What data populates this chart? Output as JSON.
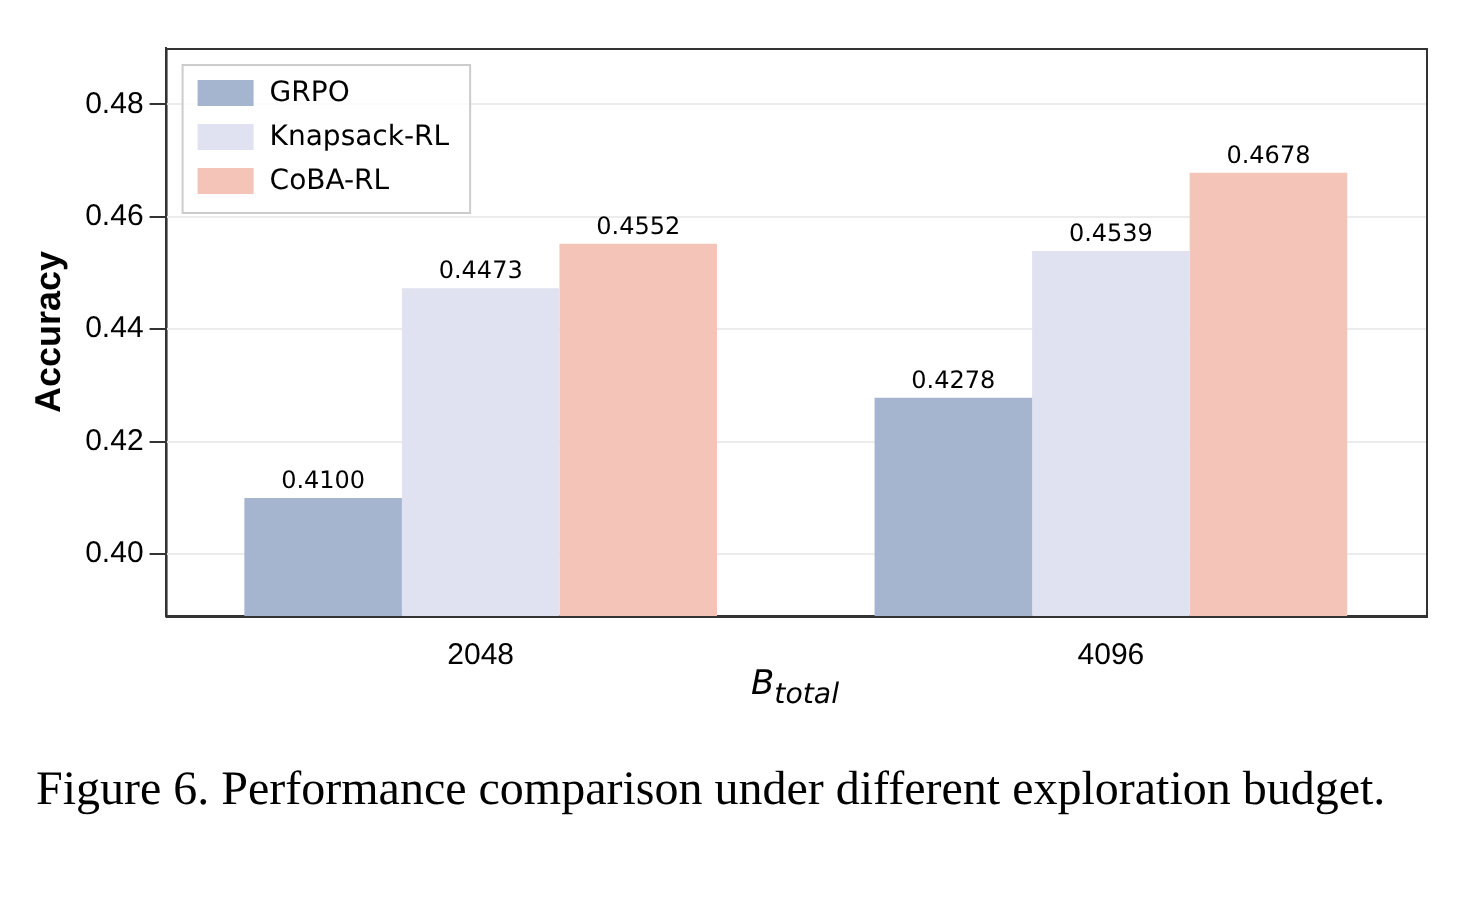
{
  "chart_data": {
    "type": "bar",
    "xlabel": "B$_{total}$",
    "ylabel": "Accuracy",
    "categories": [
      "2048",
      "4096"
    ],
    "series": [
      {
        "name": "GRPO",
        "color": "#a6b5cf",
        "values": [
          0.41,
          0.4278
        ],
        "value_labels": [
          "0.4100",
          "0.4278"
        ]
      },
      {
        "name": "Knapsack-RL",
        "color": "#e0e1f1",
        "values": [
          0.4473,
          0.4539
        ],
        "value_labels": [
          "0.4473",
          "0.4539"
        ]
      },
      {
        "name": "CoBA-RL",
        "color": "#f5c4b8",
        "values": [
          0.4552,
          0.4678
        ],
        "value_labels": [
          "0.4552",
          "0.4678"
        ]
      }
    ],
    "ylim": [
      0.389,
      0.49
    ],
    "yticks": [
      {
        "value": 0.4,
        "label": "0.40"
      },
      {
        "value": 0.42,
        "label": "0.42"
      },
      {
        "value": 0.44,
        "label": "0.44"
      },
      {
        "value": 0.46,
        "label": "0.46"
      },
      {
        "value": 0.48,
        "label": "0.48"
      }
    ],
    "grid": "y",
    "legend": "top left",
    "annotations": [
      "Figure 6.  Performance comparison under different exploration budget."
    ]
  }
}
